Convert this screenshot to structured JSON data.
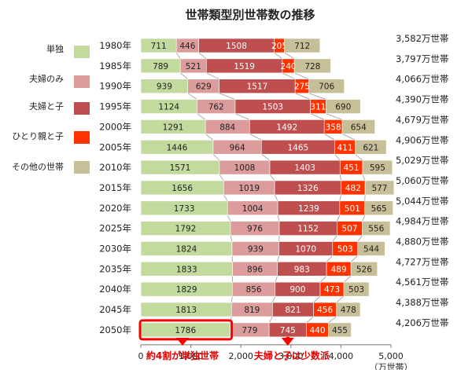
{
  "chart_data": {
    "type": "bar",
    "orientation": "horizontal",
    "stacked": true,
    "title": "世帯類型別世帯数の推移",
    "categories": [
      "1980年",
      "1985年",
      "1990年",
      "1995年",
      "2000年",
      "2005年",
      "2010年",
      "2015年",
      "2020年",
      "2025年",
      "2030年",
      "2035年",
      "2040年",
      "2045年",
      "2050年"
    ],
    "series": [
      {
        "name": "単独",
        "color": "#c3da9e",
        "values": [
          711,
          789,
          939,
          1124,
          1291,
          1446,
          1571,
          1656,
          1733,
          1792,
          1824,
          1833,
          1829,
          1813,
          1786
        ]
      },
      {
        "name": "夫婦のみ",
        "color": "#dc9c9c",
        "values": [
          446,
          521,
          629,
          762,
          884,
          964,
          1008,
          1019,
          1004,
          976,
          939,
          896,
          856,
          819,
          779
        ]
      },
      {
        "name": "夫婦と子",
        "color": "#bf4f4f",
        "values": [
          1508,
          1519,
          1517,
          1503,
          1492,
          1465,
          1403,
          1326,
          1239,
          1152,
          1070,
          983,
          900,
          821,
          745
        ]
      },
      {
        "name": "ひとり親と子",
        "color": "#ff3300",
        "values": [
          205,
          240,
          275,
          311,
          358,
          411,
          451,
          482,
          501,
          507,
          503,
          489,
          473,
          456,
          440
        ]
      },
      {
        "name": "その他の世帯",
        "color": "#c6bf98",
        "values": [
          712,
          728,
          706,
          690,
          654,
          621,
          595,
          577,
          565,
          556,
          544,
          526,
          503,
          478,
          455
        ]
      }
    ],
    "totals": [
      "3,582万世帯",
      "3,797万世帯",
      "4,066万世帯",
      "4,390万世帯",
      "4,679万世帯",
      "4,906万世帯",
      "5,029万世帯",
      "5,060万世帯",
      "5,044万世帯",
      "4,984万世帯",
      "4,880万世帯",
      "4,727万世帯",
      "4,561万世帯",
      "4,388万世帯",
      "4,206万世帯"
    ],
    "xlim": [
      0,
      5000
    ],
    "xticks": [
      "0",
      "1,000",
      "2,000",
      "3,000",
      "4,000",
      "5,000"
    ],
    "xunit": "（万世帯）",
    "legend_position": "left",
    "annotations": [
      "約4割が単独世帯",
      "夫婦と子は少数派"
    ],
    "highlight_category": "2050年",
    "highlight_series": "単独"
  }
}
